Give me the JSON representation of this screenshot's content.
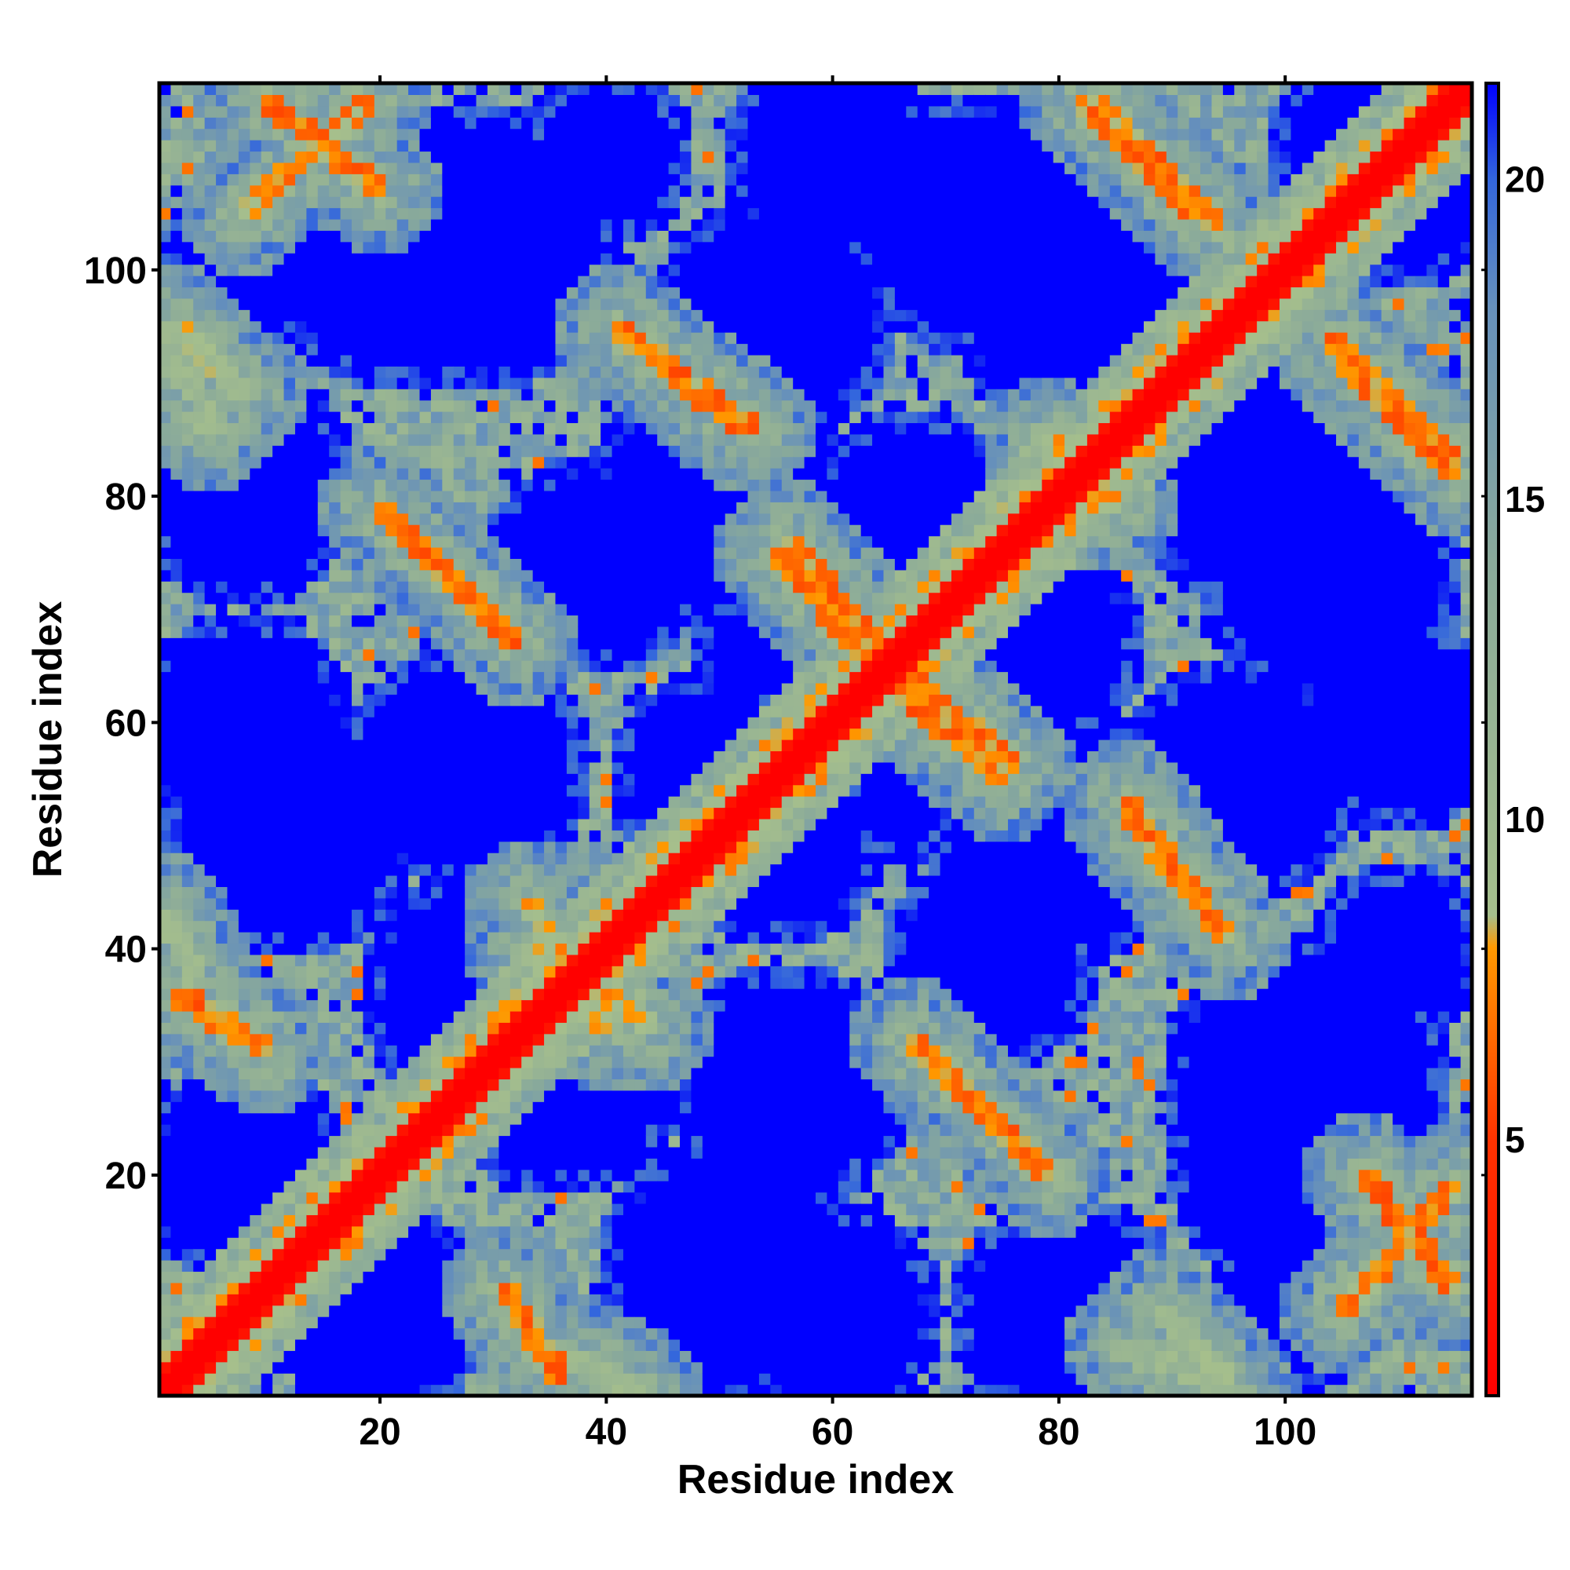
{
  "chart_data": {
    "type": "heatmap",
    "title": "",
    "xlabel": "Residue index",
    "ylabel": "Residue index",
    "n_residues": 116,
    "xlim": [
      1,
      116
    ],
    "ylim": [
      1,
      116
    ],
    "x_ticks": [
      20,
      40,
      60,
      80,
      100
    ],
    "y_ticks": [
      20,
      40,
      60,
      80,
      100
    ],
    "x_tick_labels": [
      "20",
      "40",
      "60",
      "80",
      "100"
    ],
    "y_tick_labels": [
      "20",
      "40",
      "60",
      "80",
      "100"
    ],
    "colorbar": {
      "range": [
        1,
        21.5
      ],
      "ticks": [
        5,
        10,
        15,
        20
      ],
      "tick_labels": [
        "5",
        "10",
        "15",
        "20"
      ],
      "color_stops": [
        {
          "value": 1,
          "color": "#ff0000"
        },
        {
          "value": 5,
          "color": "#ff3300"
        },
        {
          "value": 8,
          "color": "#ff9900"
        },
        {
          "value": 8.5,
          "color": "#a6bf8c"
        },
        {
          "value": 14,
          "color": "#8aaa9a"
        },
        {
          "value": 18,
          "color": "#6690bb"
        },
        {
          "value": 20,
          "color": "#3366dd"
        },
        {
          "value": 21.5,
          "color": "#0000ff"
        }
      ]
    },
    "value_description": "Inter-residue distance map; diagonal near 1, background saturated at 21.5",
    "diagonal_band_value": 1,
    "background_value": 21.5,
    "contact_bands": [
      {
        "start": [
          1,
          43
        ],
        "end": [
          4,
          37
        ],
        "value": 9
      },
      {
        "start": [
          2,
          36
        ],
        "end": [
          10,
          31
        ],
        "value": 5.5
      },
      {
        "start": [
          10,
          115
        ],
        "end": [
          20,
          107
        ],
        "value": 5.5
      },
      {
        "start": [
          2,
          95
        ],
        "end": [
          8,
          89
        ],
        "value": 8
      },
      {
        "start": [
          20,
          79
        ],
        "end": [
          31,
          68
        ],
        "value": 5.5
      },
      {
        "start": [
          32,
          8
        ],
        "end": [
          36,
          3
        ],
        "value": 5.5
      },
      {
        "start": [
          41,
          95
        ],
        "end": [
          52,
          86
        ],
        "value": 5.5
      },
      {
        "start": [
          55,
          75
        ],
        "end": [
          63,
          66
        ],
        "value": 5.5
      },
      {
        "start": [
          67,
          64
        ],
        "end": [
          76,
          56
        ],
        "value": 5.5
      },
      {
        "start": [
          67,
          32
        ],
        "end": [
          78,
          21
        ],
        "value": 5.5
      },
      {
        "start": [
          82,
          115
        ],
        "end": [
          92,
          105
        ],
        "value": 5.5
      },
      {
        "start": [
          86,
          53
        ],
        "end": [
          94,
          42
        ],
        "value": 5.5
      },
      {
        "start": [
          104,
          94
        ],
        "end": [
          115,
          83
        ],
        "value": 5.5
      },
      {
        "start": [
          105,
          8
        ],
        "end": [
          115,
          19
        ],
        "value": 6
      },
      {
        "start": [
          33,
          40
        ],
        "end": [
          44,
          33
        ],
        "value": 7
      },
      {
        "start": [
          79,
          85
        ],
        "end": [
          84,
          79
        ],
        "value": 7
      },
      {
        "start": [
          86,
          5
        ],
        "end": [
          95,
          1
        ],
        "value": 9
      }
    ],
    "cavities": [
      {
        "center": [
          29,
          102
        ],
        "radius": 11
      },
      {
        "center": [
          28,
          56
        ],
        "radius": 9
      },
      {
        "center": [
          30,
          36
        ],
        "radius": 10
      },
      {
        "center": [
          50,
          80
        ],
        "radius": 10
      },
      {
        "center": [
          50,
          55
        ],
        "radius": 8
      },
      {
        "center": [
          51,
          12
        ],
        "radius": 10
      },
      {
        "center": [
          60,
          64
        ],
        "radius": 4
      },
      {
        "center": [
          73,
          104
        ],
        "radius": 10
      },
      {
        "center": [
          74,
          39
        ],
        "radius": 8
      },
      {
        "center": [
          66,
          53
        ],
        "radius": 4
      },
      {
        "center": [
          78,
          67
        ],
        "radius": 8
      },
      {
        "center": [
          96,
          55
        ],
        "radius": 9
      },
      {
        "center": [
          99,
          82
        ],
        "radius": 11
      },
      {
        "center": [
          102,
          22
        ],
        "radius": 11
      },
      {
        "center": [
          80,
          8
        ],
        "radius": 8
      },
      {
        "center": [
          8,
          82
        ],
        "radius": 8
      },
      {
        "center": [
          8,
          20
        ],
        "radius": 8
      },
      {
        "center": [
          8,
          60
        ],
        "radius": 8
      },
      {
        "center": [
          110,
          108
        ],
        "radius": 8
      },
      {
        "center": [
          110,
          60
        ],
        "radius": 8
      },
      {
        "center": [
          40,
          110
        ],
        "radius": 6
      },
      {
        "center": [
          60,
          110
        ],
        "radius": 5
      },
      {
        "center": [
          8,
          100
        ],
        "radius": 6
      },
      {
        "center": [
          110,
          40
        ],
        "radius": 6
      }
    ]
  }
}
